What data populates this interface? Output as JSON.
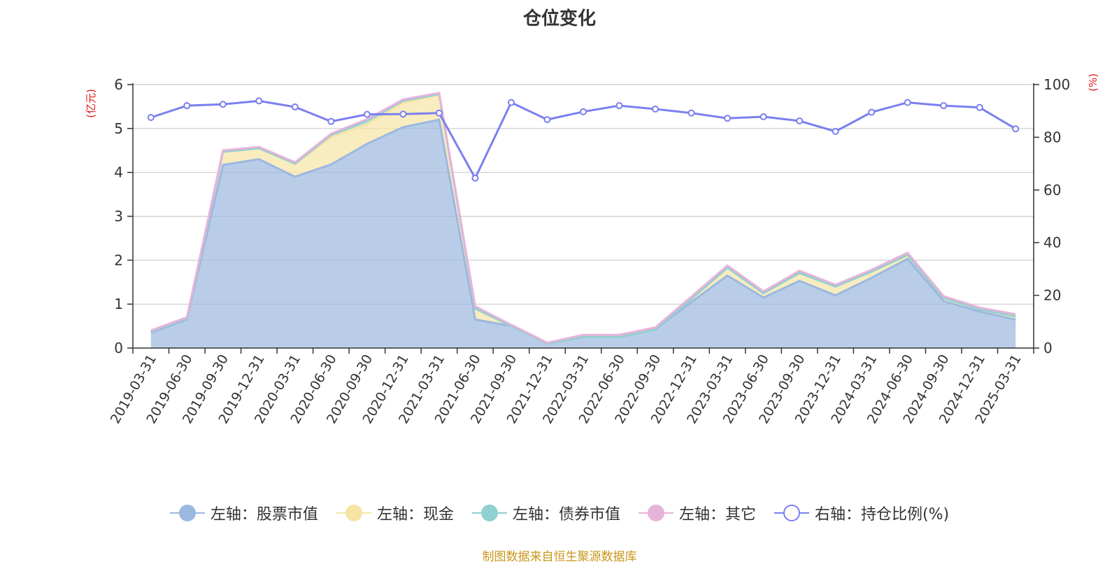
{
  "chart_data": {
    "type": "area",
    "title": "仓位变化",
    "left_axis_unit": "(亿元)",
    "right_axis_unit": "(%)",
    "left_ylim": [
      0,
      6
    ],
    "right_ylim": [
      0,
      100
    ],
    "left_ticks": [
      "0",
      "1",
      "2",
      "3",
      "4",
      "5",
      "6"
    ],
    "right_ticks": [
      "0",
      "20",
      "40",
      "60",
      "80",
      "100"
    ],
    "grid": true,
    "legend_position": "bottom",
    "categories": [
      "2019-03-31",
      "2019-06-30",
      "2019-09-30",
      "2019-12-31",
      "2020-03-31",
      "2020-06-30",
      "2020-09-30",
      "2020-12-31",
      "2021-03-31",
      "2021-06-30",
      "2021-09-30",
      "2021-12-31",
      "2022-03-31",
      "2022-06-30",
      "2022-09-30",
      "2022-12-31",
      "2023-03-31",
      "2023-06-30",
      "2023-09-30",
      "2023-12-31",
      "2024-03-31",
      "2024-06-30",
      "2024-09-30",
      "2024-12-31",
      "2025-03-31"
    ],
    "series": [
      {
        "name": "左轴：股票市值",
        "axis": "left",
        "kind": "stacked-area",
        "color": "#9bb8e0",
        "values": [
          0.35,
          0.65,
          4.17,
          4.3,
          3.9,
          4.18,
          4.65,
          5.03,
          5.2,
          0.65,
          0.5,
          0.1,
          0.25,
          0.25,
          0.42,
          1.05,
          1.65,
          1.15,
          1.53,
          1.2,
          1.6,
          2.03,
          1.07,
          0.83,
          0.65
        ]
      },
      {
        "name": "左轴：现金",
        "axis": "left",
        "kind": "stacked-area",
        "color": "#f6e4a4",
        "values": [
          0.03,
          0.03,
          0.3,
          0.25,
          0.3,
          0.62,
          0.45,
          0.55,
          0.58,
          0.25,
          0.0,
          0.0,
          0.0,
          0.0,
          0.0,
          0.07,
          0.18,
          0.1,
          0.18,
          0.2,
          0.14,
          0.09,
          0.07,
          0.05,
          0.07
        ]
      },
      {
        "name": "左轴：债券市值",
        "axis": "left",
        "kind": "stacked-area",
        "color": "#8fd0d0",
        "values": [
          0,
          0,
          0,
          0,
          0,
          0.05,
          0.08,
          0.05,
          0,
          0,
          0,
          0,
          0,
          0,
          0,
          0,
          0,
          0,
          0,
          0,
          0,
          0,
          0,
          0,
          0
        ]
      },
      {
        "name": "左轴：其它",
        "axis": "left",
        "kind": "stacked-area",
        "color": "#e6b3d9",
        "values": [
          0.02,
          0.02,
          0.03,
          0.03,
          0.03,
          0.03,
          0.03,
          0.03,
          0.03,
          0.05,
          0.03,
          0.02,
          0.05,
          0.05,
          0.05,
          0.05,
          0.05,
          0.04,
          0.05,
          0.04,
          0.04,
          0.05,
          0.04,
          0.04,
          0.05
        ]
      },
      {
        "name": "右轴：持仓比例(%)",
        "axis": "right",
        "kind": "line",
        "color": "#7b7ff0",
        "values": [
          87.5,
          92,
          92.5,
          93.8,
          91.5,
          86,
          88.7,
          88.8,
          89.2,
          64.5,
          93.2,
          86.7,
          89.7,
          92,
          90.7,
          89.2,
          87.2,
          87.8,
          86.2,
          82.2,
          89.5,
          93.2,
          92,
          91.3,
          83.2
        ]
      }
    ],
    "source_note": "制图数据来自恒生聚源数据库"
  }
}
